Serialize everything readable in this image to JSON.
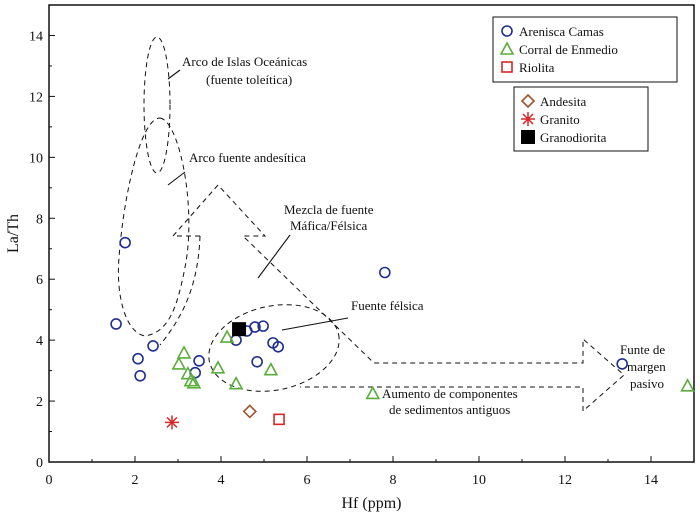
{
  "chart_data": {
    "type": "scatter",
    "xlabel": "Hf (ppm)",
    "ylabel": "La/Th",
    "xlim": [
      0,
      15
    ],
    "ylim": [
      0,
      15
    ],
    "xticks": [
      0,
      2,
      4,
      6,
      8,
      10,
      12,
      14
    ],
    "yticks": [
      0,
      2,
      4,
      6,
      8,
      10,
      12,
      14
    ],
    "grid": false,
    "series": [
      {
        "name": "Arenisca Camas",
        "marker": "circle",
        "color": "#1f2f8f",
        "points": [
          [
            1.77,
            7.2
          ],
          [
            7.81,
            6.22
          ],
          [
            1.56,
            4.53
          ],
          [
            2.42,
            3.81
          ],
          [
            2.07,
            3.39
          ],
          [
            2.12,
            2.83
          ],
          [
            3.49,
            3.32
          ],
          [
            3.4,
            2.93
          ],
          [
            4.35,
            4.0
          ],
          [
            4.6,
            4.3
          ],
          [
            4.79,
            4.43
          ],
          [
            4.98,
            4.46
          ],
          [
            5.21,
            3.91
          ],
          [
            5.33,
            3.78
          ],
          [
            4.84,
            3.29
          ],
          [
            13.33,
            3.22
          ]
        ]
      },
      {
        "name": "Corral de Enmedio",
        "marker": "triangle",
        "color": "#5aad3a",
        "points": [
          [
            4.14,
            4.1
          ],
          [
            3.14,
            3.58
          ],
          [
            3.02,
            3.22
          ],
          [
            3.23,
            2.9
          ],
          [
            3.3,
            2.67
          ],
          [
            3.37,
            2.6
          ],
          [
            3.93,
            3.09
          ],
          [
            4.35,
            2.57
          ],
          [
            5.16,
            3.03
          ],
          [
            7.53,
            2.25
          ],
          [
            14.85,
            2.5
          ]
        ]
      },
      {
        "name": "Riolita",
        "marker": "square",
        "color": "#d62728",
        "points": [
          [
            5.35,
            1.4
          ]
        ]
      },
      {
        "name": "Andesita",
        "marker": "diamond",
        "color": "#a0522d",
        "points": [
          [
            4.67,
            1.66
          ]
        ]
      },
      {
        "name": "Granito",
        "marker": "asterisk",
        "color": "#d62728",
        "points": [
          [
            2.86,
            1.3
          ]
        ]
      },
      {
        "name": "Granodiorita",
        "marker": "filled-square",
        "color": "#000000",
        "points": [
          [
            4.42,
            4.36
          ]
        ]
      }
    ],
    "legends": [
      [
        "Arenisca Camas",
        "Corral de Enmedio",
        "Riolita"
      ],
      [
        "Andesita",
        "Granito",
        "Granodiorita"
      ]
    ],
    "annotations": {
      "oceanic_line1": "Arco de Islas Oceánicas",
      "oceanic_line2": "(fuente toleítica)",
      "andesitic": "Arco fuente andesítica",
      "mix_line1": "Mezcla de fuente",
      "mix_line2": "Máfica/Félsica",
      "felsic": "Fuente félsica",
      "old_line1": "Aumento de componentes",
      "old_line2": "de sedimentos antiguos",
      "passive_line1": "Funte de",
      "passive_line2": "margen",
      "passive_line3": "pasivo"
    }
  }
}
